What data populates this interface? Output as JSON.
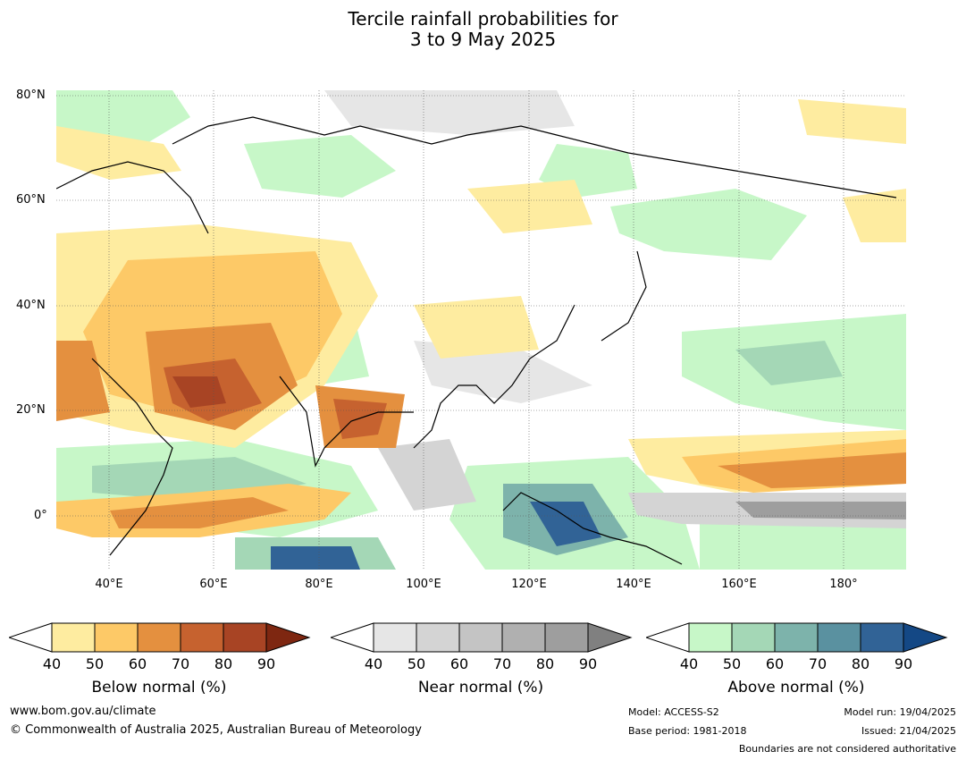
{
  "title_line1": "Tercile rainfall probabilities for",
  "title_line2": "3 to 9 May 2025",
  "lat_labels": [
    "80°N",
    "60°N",
    "40°N",
    "20°N",
    "0°"
  ],
  "lon_labels": [
    "40°E",
    "60°E",
    "80°E",
    "100°E",
    "120°E",
    "140°E",
    "160°E",
    "180°"
  ],
  "colorbars": [
    {
      "title": "Below normal (%)",
      "ticks": [
        "40",
        "50",
        "60",
        "70",
        "80",
        "90"
      ],
      "colors": [
        "#ffffff",
        "#feeca0",
        "#fdc967",
        "#e4903f",
        "#c6622f",
        "#a84424",
        "#7e2711"
      ]
    },
    {
      "title": "Near normal (%)",
      "ticks": [
        "40",
        "50",
        "60",
        "70",
        "80",
        "90"
      ],
      "colors": [
        "#ffffff",
        "#e6e6e6",
        "#d4d4d4",
        "#c4c4c4",
        "#b0b0b0",
        "#9e9e9e",
        "#808080"
      ]
    },
    {
      "title": "Above normal (%)",
      "ticks": [
        "40",
        "50",
        "60",
        "70",
        "80",
        "90"
      ],
      "colors": [
        "#ffffff",
        "#c7f7c8",
        "#a4d7b6",
        "#7db3ab",
        "#5a91a0",
        "#316396",
        "#144885"
      ]
    }
  ],
  "footer": {
    "website": "www.bom.gov.au/climate",
    "copyright": "© Commonwealth of Australia 2025, Australian Bureau of Meteorology",
    "model": "Model: ACCESS-S2",
    "base_period": "Base period: 1981-2018",
    "model_run": "Model run: 19/04/2025",
    "issued": "Issued: 21/04/2025",
    "disclaimer": "Boundaries are not considered authoritative"
  }
}
